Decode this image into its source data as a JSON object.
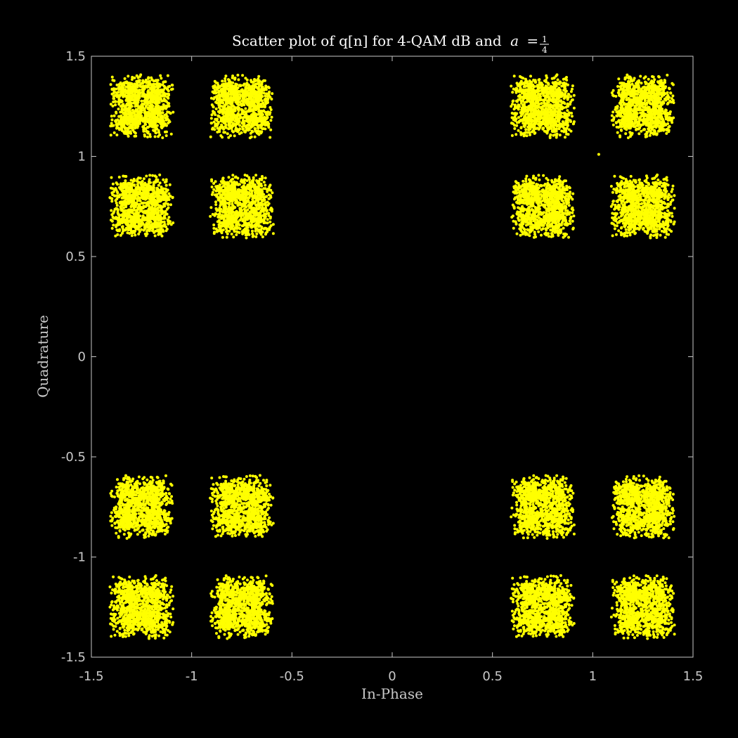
{
  "chart_data": {
    "type": "scatter",
    "title_text": "Scatter plot of q[n] for 4-QAM dB and",
    "title_var": "a",
    "title_eq": "=",
    "title_frac_num": "1",
    "title_frac_den": "4",
    "xlabel": "In-Phase",
    "ylabel": "Quadrature",
    "xlim": [
      -1.5,
      1.5
    ],
    "ylim": [
      -1.5,
      1.5
    ],
    "xticks": [
      -1.5,
      -1,
      -0.5,
      0,
      0.5,
      1,
      1.5
    ],
    "yticks": [
      -1.5,
      -1,
      -0.5,
      0,
      0.5,
      1,
      1.5
    ],
    "xtick_labels": [
      "-1.5",
      "-1",
      "-0.5",
      "0",
      "0.5",
      "1",
      "1.5"
    ],
    "ytick_labels": [
      "-1.5",
      "-1",
      "-0.5",
      "0",
      "0.5",
      "1",
      "1.5"
    ],
    "grid": false,
    "marker_color": "#ffff00",
    "background": "#000000",
    "axis_color": "#c8c8c8",
    "series": [
      {
        "cluster_centers": [
          [
            -1.25,
            1.25
          ],
          [
            -0.75,
            1.25
          ],
          [
            0.75,
            1.25
          ],
          [
            1.25,
            1.25
          ],
          [
            -1.25,
            0.75
          ],
          [
            -0.75,
            0.75
          ],
          [
            0.75,
            0.75
          ],
          [
            1.25,
            0.75
          ],
          [
            -1.25,
            -0.75
          ],
          [
            -0.75,
            -0.75
          ],
          [
            0.75,
            -0.75
          ],
          [
            1.25,
            -0.75
          ],
          [
            -1.25,
            -1.25
          ],
          [
            -0.75,
            -1.25
          ],
          [
            0.75,
            -1.25
          ],
          [
            1.25,
            -1.25
          ]
        ],
        "cluster_half_width": 0.15,
        "outliers": [
          [
            1.03,
            1.01
          ]
        ]
      }
    ]
  }
}
